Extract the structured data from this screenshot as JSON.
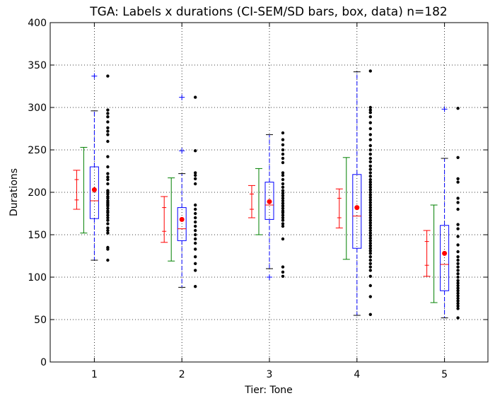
{
  "chart_data": {
    "type": "box",
    "title": "TGA: Labels x durations (CI-SEM/SD bars, box, data) n=182",
    "xlabel": "Tier: Tone",
    "ylabel": "Durations",
    "categories": [
      "1",
      "2",
      "3",
      "4",
      "5"
    ],
    "ylim": [
      0,
      400
    ],
    "yticks": [
      0,
      50,
      100,
      150,
      200,
      250,
      300,
      350,
      400
    ],
    "grid": true,
    "groups": [
      {
        "category": "1",
        "mean": 203,
        "sd_bar": {
          "low": 152,
          "high": 253
        },
        "ci_bar": {
          "low": 180,
          "high": 226,
          "inner_low": 191,
          "inner_high": 215
        },
        "box": {
          "q1": 169,
          "median": 190,
          "q3": 230,
          "whisker_low": 120,
          "whisker_high": 296
        },
        "outliers": [
          337
        ],
        "points": [
          120,
          133,
          135,
          152,
          155,
          158,
          163,
          167,
          170,
          173,
          176,
          178,
          181,
          184,
          186,
          188,
          190,
          193,
          195,
          198,
          200,
          202,
          210,
          215,
          218,
          222,
          230,
          242,
          260,
          268,
          272,
          276,
          283,
          289,
          293,
          297,
          337
        ]
      },
      {
        "category": "2",
        "mean": 168,
        "sd_bar": {
          "low": 119,
          "high": 217
        },
        "ci_bar": {
          "low": 141,
          "high": 195,
          "inner_low": 154,
          "inner_high": 182
        },
        "box": {
          "q1": 143,
          "median": 157,
          "q3": 182,
          "whisker_low": 88,
          "whisker_high": 222
        },
        "outliers": [
          249,
          312
        ],
        "points": [
          89,
          108,
          116,
          124,
          133,
          140,
          145,
          150,
          155,
          160,
          165,
          170,
          175,
          180,
          185,
          210,
          216,
          220,
          223,
          249,
          312
        ]
      },
      {
        "category": "3",
        "mean": 189,
        "sd_bar": {
          "low": 150,
          "high": 228
        },
        "ci_bar": {
          "low": 170,
          "high": 208,
          "inner_low": 180,
          "inner_high": 198
        },
        "box": {
          "q1": 168,
          "median": 185,
          "q3": 212,
          "whisker_low": 110,
          "whisker_high": 268
        },
        "outliers": [
          100
        ],
        "points": [
          101,
          106,
          112,
          145,
          160,
          163,
          167,
          170,
          173,
          176,
          178,
          181,
          184,
          187,
          190,
          193,
          196,
          199,
          202,
          206,
          210,
          215,
          220,
          223,
          235,
          240,
          245,
          250,
          256,
          262,
          270
        ]
      },
      {
        "category": "4",
        "mean": 182,
        "sd_bar": {
          "low": 121,
          "high": 241
        },
        "ci_bar": {
          "low": 158,
          "high": 204,
          "inner_low": 170,
          "inner_high": 193
        },
        "box": {
          "q1": 134,
          "median": 172,
          "q3": 221,
          "whisker_low": 55,
          "whisker_high": 342
        },
        "outliers": [],
        "points": [
          56,
          77,
          90,
          101,
          108,
          112,
          116,
          120,
          124,
          128,
          131,
          134,
          137,
          140,
          143,
          146,
          149,
          152,
          155,
          158,
          161,
          164,
          167,
          170,
          173,
          176,
          179,
          182,
          185,
          188,
          191,
          194,
          197,
          200,
          203,
          206,
          209,
          212,
          215,
          219,
          223,
          227,
          231,
          236,
          240,
          245,
          250,
          255,
          262,
          268,
          275,
          282,
          289,
          294,
          297,
          300,
          343
        ]
      },
      {
        "category": "5",
        "mean": 128,
        "sd_bar": {
          "low": 70,
          "high": 185
        },
        "ci_bar": {
          "low": 101,
          "high": 155,
          "inner_low": 114,
          "inner_high": 142
        },
        "box": {
          "q1": 84,
          "median": 115,
          "q3": 161,
          "whisker_low": 52,
          "whisker_high": 240
        },
        "outliers": [
          298
        ],
        "points": [
          52,
          63,
          66,
          69,
          72,
          75,
          78,
          81,
          84,
          87,
          90,
          93,
          96,
          100,
          104,
          108,
          112,
          116,
          120,
          124,
          130,
          138,
          148,
          157,
          162,
          180,
          188,
          193,
          212,
          216,
          241,
          299
        ]
      }
    ],
    "colors": {
      "ci": "#ff0000",
      "sd": "#008000",
      "box": "#0000ff",
      "median": "#ff0000",
      "mean": "#ff0000",
      "points": "#000000"
    }
  }
}
